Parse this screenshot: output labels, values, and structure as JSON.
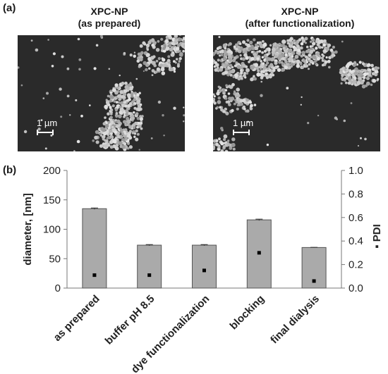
{
  "panel_a": {
    "label": "(a)",
    "left_image": {
      "title_line1": "XPC-NP",
      "title_line2": "(as prepared)",
      "scale_label": "1 µm"
    },
    "right_image": {
      "title_line1": "XPC-NP",
      "title_line2": "(after functionalization)",
      "scale_label": "1 µm"
    }
  },
  "panel_b": {
    "label": "(b)"
  },
  "chart_data": {
    "type": "bar",
    "categories": [
      "as prepared",
      "buffer pH 8.5",
      "dye functionalization",
      "blocking",
      "final dialysis"
    ],
    "series": [
      {
        "axis": "left",
        "marker": "bar",
        "values": [
          135,
          73,
          73,
          116,
          69
        ],
        "errors": [
          1.2,
          1,
          1,
          1.2,
          0.3
        ]
      },
      {
        "name": "PDI",
        "axis": "right",
        "marker": "square",
        "values": [
          0.11,
          0.11,
          0.15,
          0.3,
          0.06
        ]
      }
    ],
    "ylabel": "diameter, [nm]",
    "y2label": "▪ PDI",
    "ylim": [
      0,
      200
    ],
    "y2lim": [
      0,
      1.0
    ],
    "yticks": [
      "0",
      "50",
      "100",
      "150",
      "200"
    ],
    "y2ticks": [
      "0.0",
      "0.2",
      "0.4",
      "0.6",
      "0.8",
      "1.0"
    ],
    "grid": false,
    "colors": {
      "bar": "#aaaaaa",
      "bar_edge": "#555555",
      "marker": "#000000"
    }
  }
}
